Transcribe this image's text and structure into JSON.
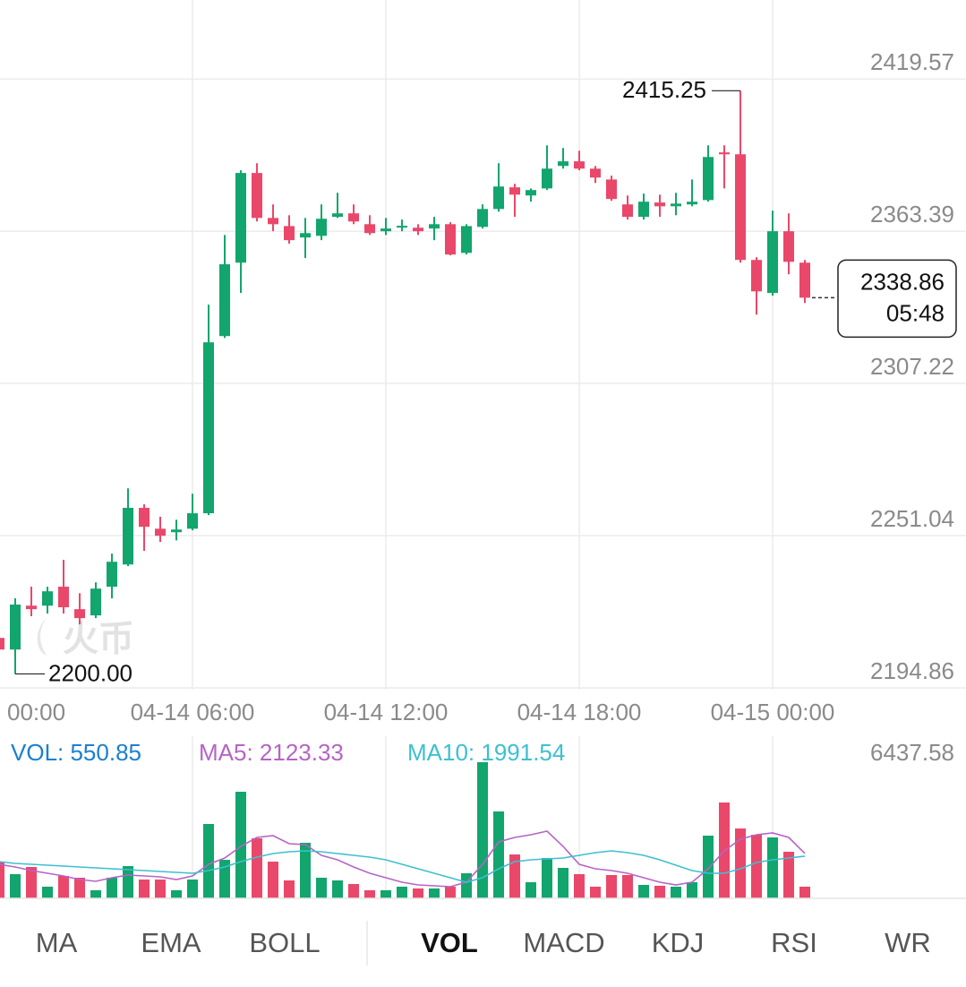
{
  "chart_data": [
    {
      "type": "candlestick",
      "open": [
        2213.3,
        2209.0,
        2225.2,
        2225.2,
        2232.2,
        2223.9,
        2221.6,
        2232.2,
        2240.4,
        2261.3,
        2253.6,
        2252.3,
        2253.6,
        2259.3,
        2324.7,
        2351.8,
        2384.9,
        2368.3,
        2365.3,
        2361.1,
        2361.7,
        2368.7,
        2370.0,
        2366.0,
        2363.4,
        2365.0,
        2364.7,
        2364.4,
        2366.0,
        2355.4,
        2365.0,
        2371.6,
        2379.6,
        2376.6,
        2379.2,
        2387.5,
        2389.2,
        2386.5,
        2382.5,
        2373.3,
        2368.7,
        2374.0,
        2372.6,
        2373.3,
        2374.9,
        2392.5,
        2391.8,
        2352.8,
        2340.6,
        2363.4,
        2351.8
      ],
      "high": [
        2214.0,
        2227.9,
        2232.2,
        2232.2,
        2242.1,
        2229.8,
        2233.8,
        2244.4,
        2268.5,
        2262.6,
        2258.0,
        2256.9,
        2266.5,
        2336.3,
        2362.0,
        2385.9,
        2388.5,
        2373.3,
        2369.3,
        2368.3,
        2373.3,
        2377.6,
        2373.3,
        2369.3,
        2368.3,
        2367.7,
        2366.0,
        2368.7,
        2366.7,
        2366.0,
        2373.3,
        2388.5,
        2380.9,
        2379.2,
        2395.1,
        2394.1,
        2393.1,
        2387.5,
        2383.9,
        2376.6,
        2377.3,
        2376.9,
        2377.6,
        2382.5,
        2395.1,
        2395.1,
        2415.25,
        2353.8,
        2371.0,
        2370.0,
        2352.8
      ],
      "low": [
        2208.0,
        2200.0,
        2221.3,
        2222.3,
        2222.3,
        2218.3,
        2220.6,
        2227.9,
        2239.8,
        2245.4,
        2248.7,
        2249.3,
        2253.0,
        2258.6,
        2324.0,
        2340.6,
        2367.0,
        2363.4,
        2358.8,
        2353.5,
        2360.1,
        2368.3,
        2366.0,
        2362.0,
        2362.0,
        2363.4,
        2362.0,
        2360.1,
        2354.5,
        2354.8,
        2364.4,
        2370.6,
        2368.7,
        2374.3,
        2378.6,
        2386.5,
        2385.9,
        2381.2,
        2374.6,
        2367.7,
        2367.7,
        2368.7,
        2369.3,
        2372.6,
        2374.3,
        2379.2,
        2351.8,
        2332.6,
        2339.6,
        2347.5,
        2336.9
      ],
      "close": [
        2209.0,
        2225.6,
        2223.9,
        2230.5,
        2224.6,
        2220.6,
        2231.5,
        2241.4,
        2261.3,
        2254.3,
        2251.0,
        2253.3,
        2259.3,
        2322.4,
        2351.2,
        2384.9,
        2368.3,
        2366.0,
        2360.1,
        2362.7,
        2368.0,
        2370.0,
        2367.0,
        2362.7,
        2364.4,
        2365.4,
        2363.4,
        2366.0,
        2354.8,
        2365.3,
        2371.6,
        2379.9,
        2376.9,
        2378.6,
        2386.5,
        2389.2,
        2386.5,
        2383.2,
        2375.3,
        2368.7,
        2374.3,
        2372.6,
        2373.6,
        2374.3,
        2390.8,
        2391.8,
        2352.8,
        2341.2,
        2363.4,
        2352.1,
        2338.86
      ],
      "up_color": "#12a56d",
      "down_color": "#e9486a",
      "ylim": [
        2194.86,
        2447.75
      ],
      "yticks": [
        2194.86,
        2251.04,
        2307.22,
        2363.39,
        2419.57
      ],
      "x_labels": [
        "00:00",
        "04-14 06:00",
        "04-14 12:00",
        "04-14 18:00",
        "04-15 00:00"
      ],
      "grid": true,
      "high_label": "2415.25",
      "low_label": "2200.00",
      "last_price_label": "2338.86",
      "countdown": "05:48",
      "watermark": "火币"
    },
    {
      "type": "bar",
      "series": [
        {
          "name": "VOL: 550.85",
          "color": "#1b7fd0",
          "values": [
            1736,
            1143,
            1482,
            551,
            1059,
            974,
            381,
            974,
            1525,
            889,
            889,
            381,
            889,
            3515,
            1821,
            5040,
            2837,
            1736,
            847,
            2626,
            974,
            847,
            678,
            381,
            381,
            551,
            466,
            466,
            551,
            1186,
            6437.58,
            4108,
            2075,
            762,
            1906,
            1440,
            1143,
            551,
            1101,
            1101,
            635,
            593,
            551,
            762,
            2965,
            4531,
            3303,
            3007,
            2880,
            2202,
            550.85
          ]
        },
        {
          "name": "MA5: 2123.33",
          "type": "line",
          "color": "#b664c6",
          "values": [
            1609,
            1482,
            1313,
            1186,
            1059,
            889,
            805,
            974,
            1101,
            1059,
            1016,
            889,
            1059,
            1609,
            1906,
            2456,
            2880,
            2965,
            2583,
            2541,
            2033,
            1821,
            1482,
            1186,
            974,
            762,
            635,
            593,
            551,
            762,
            1609,
            2668,
            2880,
            3007,
            3176,
            2456,
            1609,
            1398,
            1313,
            1186,
            974,
            762,
            635,
            762,
            1398,
            2245,
            2795,
            3007,
            3092,
            2880,
            2123.33
          ]
        },
        {
          "name": "MA10: 1991.54",
          "type": "line",
          "color": "#3dc0d0",
          "values": [
            1736,
            1652,
            1609,
            1567,
            1525,
            1482,
            1440,
            1398,
            1355,
            1313,
            1271,
            1228,
            1186,
            1313,
            1482,
            1736,
            1948,
            2118,
            2202,
            2245,
            2202,
            2118,
            2033,
            1948,
            1821,
            1609,
            1398,
            1186,
            974,
            762,
            974,
            1398,
            1736,
            1821,
            1863,
            1906,
            2033,
            2160,
            2245,
            2160,
            2033,
            1821,
            1567,
            1313,
            1186,
            1186,
            1398,
            1694,
            1821,
            1906,
            1991.54
          ]
        }
      ],
      "ylim": [
        0,
        6437.58
      ],
      "yticks": [
        6437.58
      ]
    }
  ],
  "tabs": [
    "MA",
    "EMA",
    "BOLL",
    "VOL",
    "MACD",
    "KDJ",
    "RSI",
    "WR"
  ],
  "active_tab": 3
}
